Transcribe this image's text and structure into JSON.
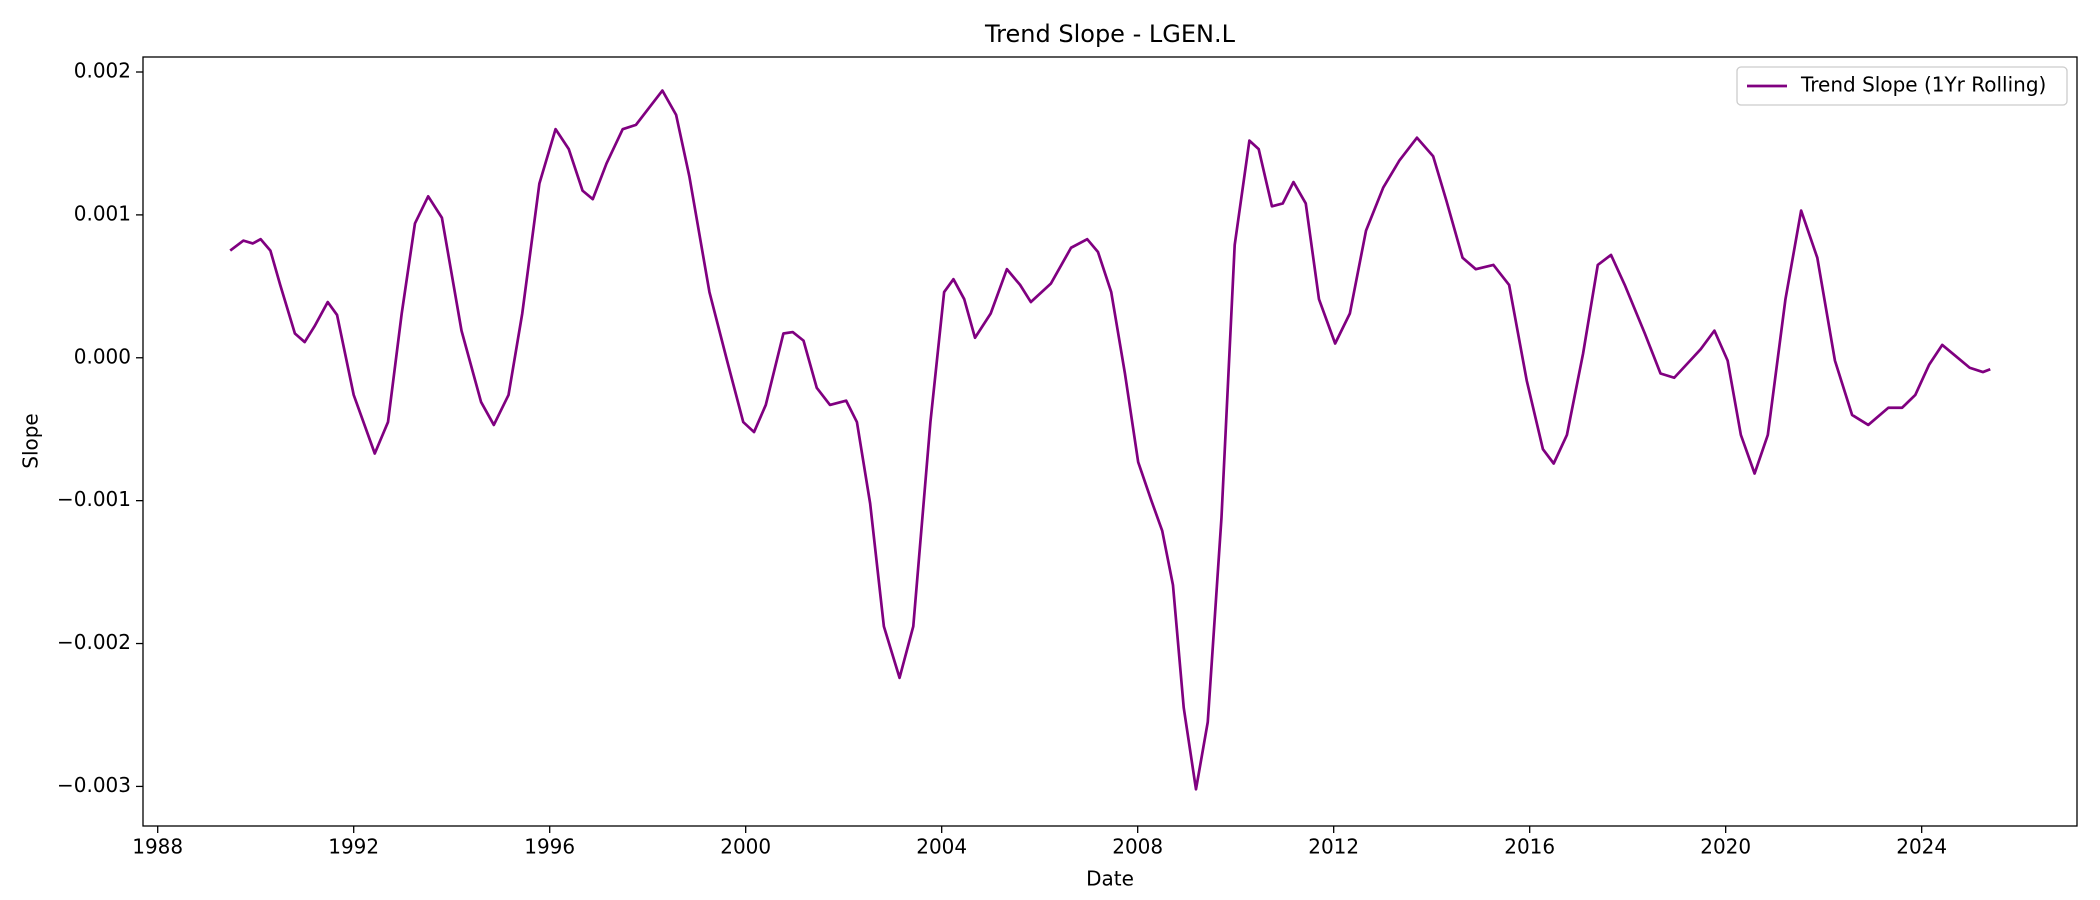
{
  "chart_data": {
    "type": "line",
    "title": "Trend Slope - LGEN.L",
    "x_label": "Date",
    "y_label": "Slope",
    "x": [
      1989.48,
      1989.75,
      1989.94,
      1990.1,
      1990.3,
      1990.5,
      1990.8,
      1991.0,
      1991.2,
      1991.47,
      1991.66,
      1992.0,
      1992.43,
      1992.7,
      1992.98,
      1993.25,
      1993.52,
      1993.8,
      1994.2,
      1994.6,
      1994.86,
      1995.16,
      1995.44,
      1995.79,
      1996.12,
      1996.39,
      1996.67,
      1996.88,
      1997.16,
      1997.49,
      1997.76,
      1998.03,
      1998.3,
      1998.58,
      1998.85,
      1999.26,
      1999.62,
      1999.95,
      2000.17,
      2000.41,
      2000.77,
      2000.96,
      2001.18,
      2001.45,
      2001.72,
      2002.05,
      2002.27,
      2002.54,
      2002.82,
      2003.14,
      2003.42,
      2003.77,
      2004.05,
      2004.24,
      2004.46,
      2004.68,
      2005.0,
      2005.33,
      2005.6,
      2005.82,
      2006.23,
      2006.64,
      2006.97,
      2007.19,
      2007.46,
      2007.74,
      2008.01,
      2008.28,
      2008.5,
      2008.72,
      2008.94,
      2009.19,
      2009.43,
      2009.71,
      2009.98,
      2010.28,
      2010.47,
      2010.74,
      2010.96,
      2011.18,
      2011.43,
      2011.7,
      2012.03,
      2012.33,
      2012.66,
      2013.01,
      2013.34,
      2013.7,
      2014.03,
      2014.3,
      2014.63,
      2014.9,
      2015.26,
      2015.58,
      2015.94,
      2016.27,
      2016.49,
      2016.76,
      2017.09,
      2017.39,
      2017.66,
      2017.94,
      2018.35,
      2018.67,
      2018.95,
      2019.22,
      2019.49,
      2019.77,
      2020.04,
      2020.31,
      2020.59,
      2020.86,
      2021.22,
      2021.54,
      2021.87,
      2022.23,
      2022.58,
      2022.91,
      2023.32,
      2023.6,
      2023.87,
      2024.15,
      2024.42,
      2024.7,
      2024.98,
      2025.25,
      2025.4
    ],
    "series": [
      {
        "name": "Trend Slope (1Yr Rolling)",
        "color": "#800080",
        "values": [
          0.00075,
          0.00082,
          0.0008,
          0.00083,
          0.00075,
          0.00051,
          0.00017,
          0.00011,
          0.00022,
          0.00039,
          0.0003,
          -0.00026,
          -0.00067,
          -0.00045,
          0.00031,
          0.00094,
          0.00113,
          0.00098,
          0.00019,
          -0.00031,
          -0.00047,
          -0.00026,
          0.00031,
          0.00122,
          0.0016,
          0.00146,
          0.00117,
          0.00111,
          0.00136,
          0.0016,
          0.00163,
          0.00175,
          0.00187,
          0.0017,
          0.00127,
          0.00046,
          -2e-05,
          -0.00045,
          -0.00052,
          -0.00033,
          0.00017,
          0.00018,
          0.00012,
          -0.00021,
          -0.00033,
          -0.0003,
          -0.00045,
          -0.00102,
          -0.00188,
          -0.00224,
          -0.00188,
          -0.00045,
          0.00046,
          0.00055,
          0.00041,
          0.00014,
          0.00031,
          0.00062,
          0.00051,
          0.00039,
          0.00052,
          0.00077,
          0.00083,
          0.00074,
          0.00046,
          -0.00011,
          -0.00073,
          -0.001,
          -0.00121,
          -0.00159,
          -0.00245,
          -0.00302,
          -0.00255,
          -0.00112,
          0.00079,
          0.00152,
          0.00146,
          0.00106,
          0.00108,
          0.00123,
          0.00108,
          0.00041,
          0.0001,
          0.00031,
          0.00089,
          0.00119,
          0.00138,
          0.00154,
          0.00141,
          0.0011,
          0.0007,
          0.00062,
          0.00065,
          0.00051,
          -0.00016,
          -0.00064,
          -0.00074,
          -0.00054,
          3e-05,
          0.00065,
          0.00072,
          0.00051,
          0.00017,
          -0.00011,
          -0.00014,
          -4e-05,
          6e-05,
          0.00019,
          -2e-05,
          -0.00054,
          -0.00081,
          -0.00054,
          0.00041,
          0.00103,
          0.0007,
          -2e-05,
          -0.0004,
          -0.00047,
          -0.00035,
          -0.00035,
          -0.00026,
          -5e-05,
          9e-05,
          1e-05,
          -7e-05,
          -0.0001,
          -8e-05
        ]
      }
    ],
    "xlim": [
      1987.7,
      2027.17
    ],
    "xticks": [
      1988,
      1992,
      1996,
      2000,
      2004,
      2008,
      2012,
      2016,
      2020,
      2024
    ],
    "ylim": [
      -0.003277,
      0.002105
    ],
    "yticks": [
      {
        "value": -0.003,
        "label": "−0.003"
      },
      {
        "value": -0.002,
        "label": "−0.002"
      },
      {
        "value": -0.001,
        "label": "−0.001"
      },
      {
        "value": 0,
        "label": "0.000"
      },
      0.001,
      0.002
    ],
    "grid": false,
    "legend": "upper right"
  }
}
